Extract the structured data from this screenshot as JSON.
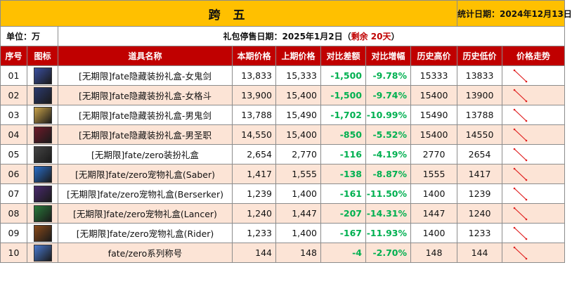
{
  "title": "跨 五",
  "stat_date": "统计日期：2024年12月13日",
  "unit": "单位：万",
  "stop_label": "礼包停售日期：2025年1月2日（",
  "remaining": "剩余 20天",
  "stop_suffix": "）",
  "headers": [
    "序号",
    "图标",
    "道具名称",
    "本期价格",
    "上期价格",
    "对比差额",
    "对比增幅",
    "历史高价",
    "历史低价",
    "价格走势"
  ],
  "rows": [
    {
      "no": "01",
      "icon": "female-ghost-swordsman-icon",
      "name": "[无期限]fate隐藏装扮礼盒-女鬼剑",
      "cur": "13,833",
      "prev": "15,333",
      "diff": "-1,500",
      "pct": "-9.78%",
      "high": "15333",
      "low": "13833"
    },
    {
      "no": "02",
      "icon": "female-fighter-icon",
      "name": "[无期限]fate隐藏装扮礼盒-女格斗",
      "cur": "13,900",
      "prev": "15,400",
      "diff": "-1,500",
      "pct": "-9.74%",
      "high": "15400",
      "low": "13900"
    },
    {
      "no": "03",
      "icon": "male-ghost-swordsman-icon",
      "name": "[无期限]fate隐藏装扮礼盒-男鬼剑",
      "cur": "13,788",
      "prev": "15,490",
      "diff": "-1,702",
      "pct": "-10.99%",
      "high": "15490",
      "low": "13788"
    },
    {
      "no": "04",
      "icon": "male-priest-icon",
      "name": "[无期限]fate隐藏装扮礼盒-男圣职",
      "cur": "14,550",
      "prev": "15,400",
      "diff": "-850",
      "pct": "-5.52%",
      "high": "15400",
      "low": "14550"
    },
    {
      "no": "05",
      "icon": "costume-box-icon",
      "name": "[无期限]fate/zero装扮礼盒",
      "cur": "2,654",
      "prev": "2,770",
      "diff": "-116",
      "pct": "-4.19%",
      "high": "2770",
      "low": "2654"
    },
    {
      "no": "06",
      "icon": "saber-pet-icon",
      "name": "[无期限]fate/zero宠物礼盒(Saber)",
      "cur": "1,417",
      "prev": "1,555",
      "diff": "-138",
      "pct": "-8.87%",
      "high": "1555",
      "low": "1417"
    },
    {
      "no": "07",
      "icon": "berserker-pet-icon",
      "name": "[无期限]fate/zero宠物礼盒(Berserker)",
      "cur": "1,239",
      "prev": "1,400",
      "diff": "-161",
      "pct": "-11.50%",
      "high": "1400",
      "low": "1239"
    },
    {
      "no": "08",
      "icon": "lancer-pet-icon",
      "name": "[无期限]fate/zero宠物礼盒(Lancer)",
      "cur": "1,240",
      "prev": "1,447",
      "diff": "-207",
      "pct": "-14.31%",
      "high": "1447",
      "low": "1240"
    },
    {
      "no": "09",
      "icon": "rider-pet-icon",
      "name": "[无期限]fate/zero宠物礼盒(Rider)",
      "cur": "1,233",
      "prev": "1,400",
      "diff": "-167",
      "pct": "-11.93%",
      "high": "1400",
      "low": "1233"
    },
    {
      "no": "10",
      "icon": "title-sword-icon",
      "name": "fate/zero系列称号",
      "cur": "144",
      "prev": "148",
      "diff": "-4",
      "pct": "-2.70%",
      "high": "148",
      "low": "144"
    }
  ],
  "colors": {
    "title_bg": "#ffc000",
    "header_bg": "#c00000",
    "alt_row_bg": "#fce4d6",
    "decrease": "#00b050",
    "accent_red": "#c00000",
    "trend_line": "#e02020"
  },
  "icon_colors": [
    "#3a4fa0",
    "#2c3a6e",
    "#c9a24a",
    "#6e1a2a",
    "#444444",
    "#2a6ec9",
    "#4a2a6e",
    "#2a7a3a",
    "#8a4a1a",
    "#4a7ad0"
  ]
}
